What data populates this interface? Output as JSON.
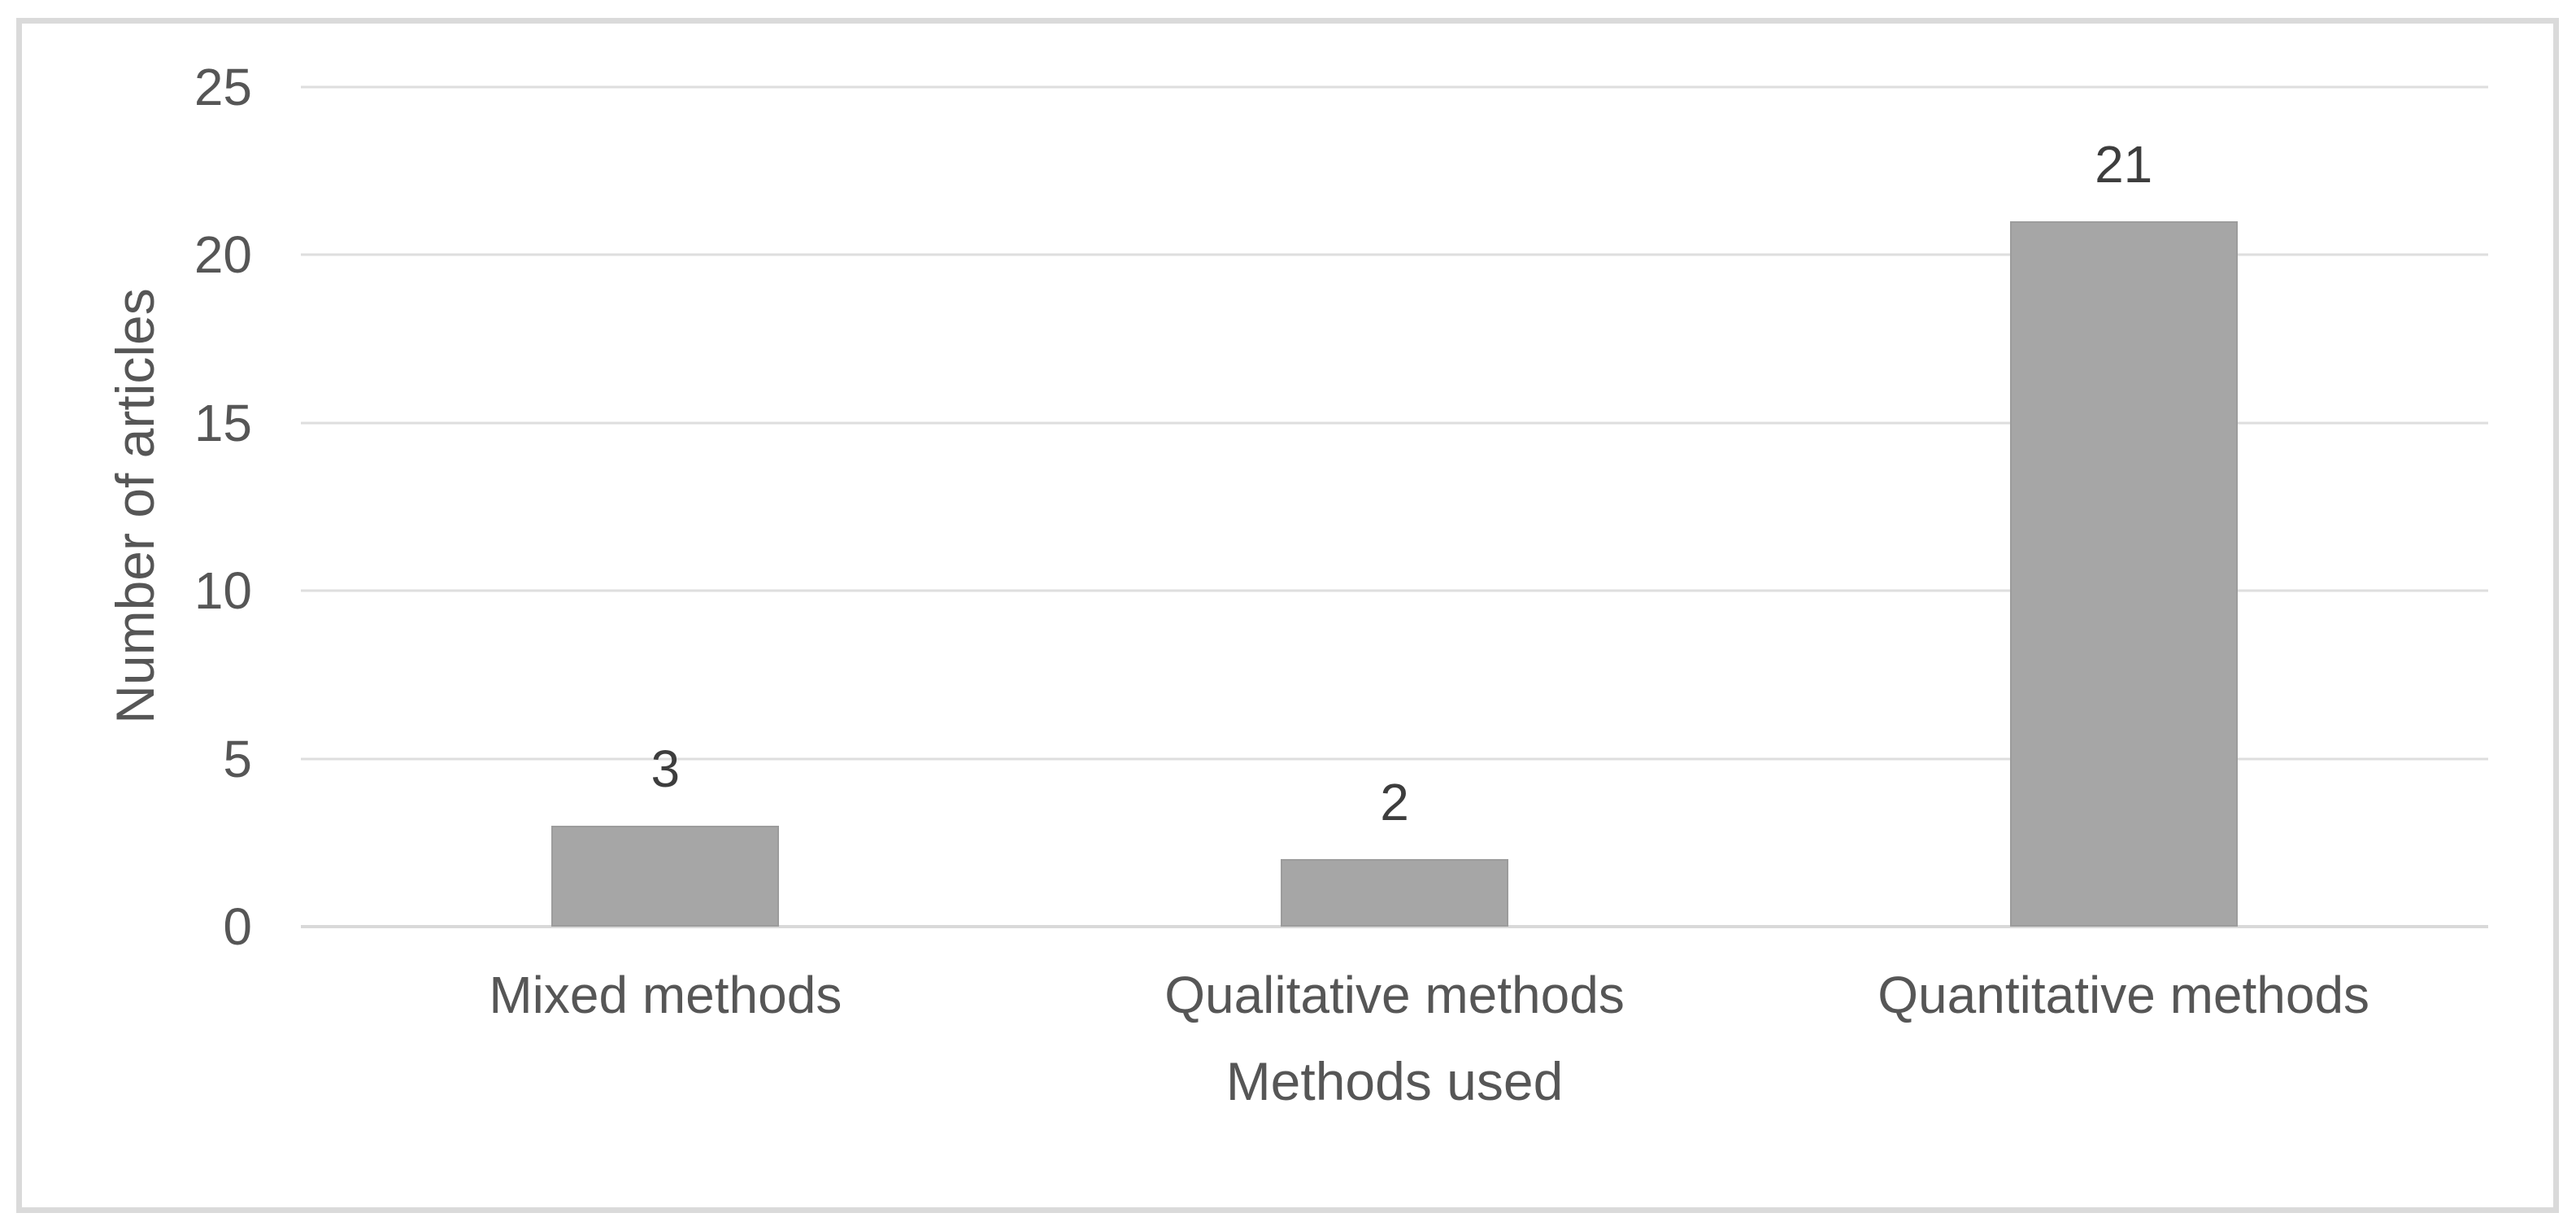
{
  "chart_data": {
    "type": "bar",
    "categories": [
      "Mixed methods",
      "Qualitative methods",
      "Quantitative methods"
    ],
    "values": [
      3,
      2,
      21
    ],
    "data_labels_shown": true,
    "xlabel": "Methods used",
    "ylabel": "Number of articles",
    "yticks": [
      0,
      5,
      10,
      15,
      20,
      25
    ],
    "ylim": [
      0,
      25
    ],
    "grid": "horizontal",
    "legend": "none",
    "colors": {
      "bar": "#a6a6a6",
      "bar_edge": "#9c9c9c",
      "gridline": "#dedede",
      "axis_line": "#d9d9d9",
      "axis_text": "#565656",
      "value_label": "#3d3d3d",
      "outer_frame": "#dadada",
      "background": "#ffffff"
    }
  }
}
